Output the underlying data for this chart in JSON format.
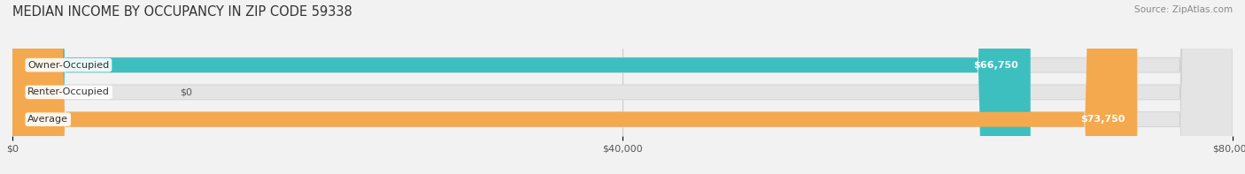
{
  "title": "MEDIAN INCOME BY OCCUPANCY IN ZIP CODE 59338",
  "source": "Source: ZipAtlas.com",
  "categories": [
    "Owner-Occupied",
    "Renter-Occupied",
    "Average"
  ],
  "values": [
    66750,
    0,
    73750
  ],
  "bar_colors": [
    "#3dbfbf",
    "#c8a8d8",
    "#f5a94e"
  ],
  "bar_labels": [
    "$66,750",
    "$0",
    "$73,750"
  ],
  "xlim": [
    0,
    80000
  ],
  "xticks": [
    0,
    40000,
    80000
  ],
  "xtick_labels": [
    "$0",
    "$40,000",
    "$80,000"
  ],
  "bg_color": "#f2f2f2",
  "bar_bg_color": "#e4e4e4",
  "title_fontsize": 10.5,
  "label_fontsize": 8,
  "tick_fontsize": 8,
  "source_fontsize": 7.5
}
